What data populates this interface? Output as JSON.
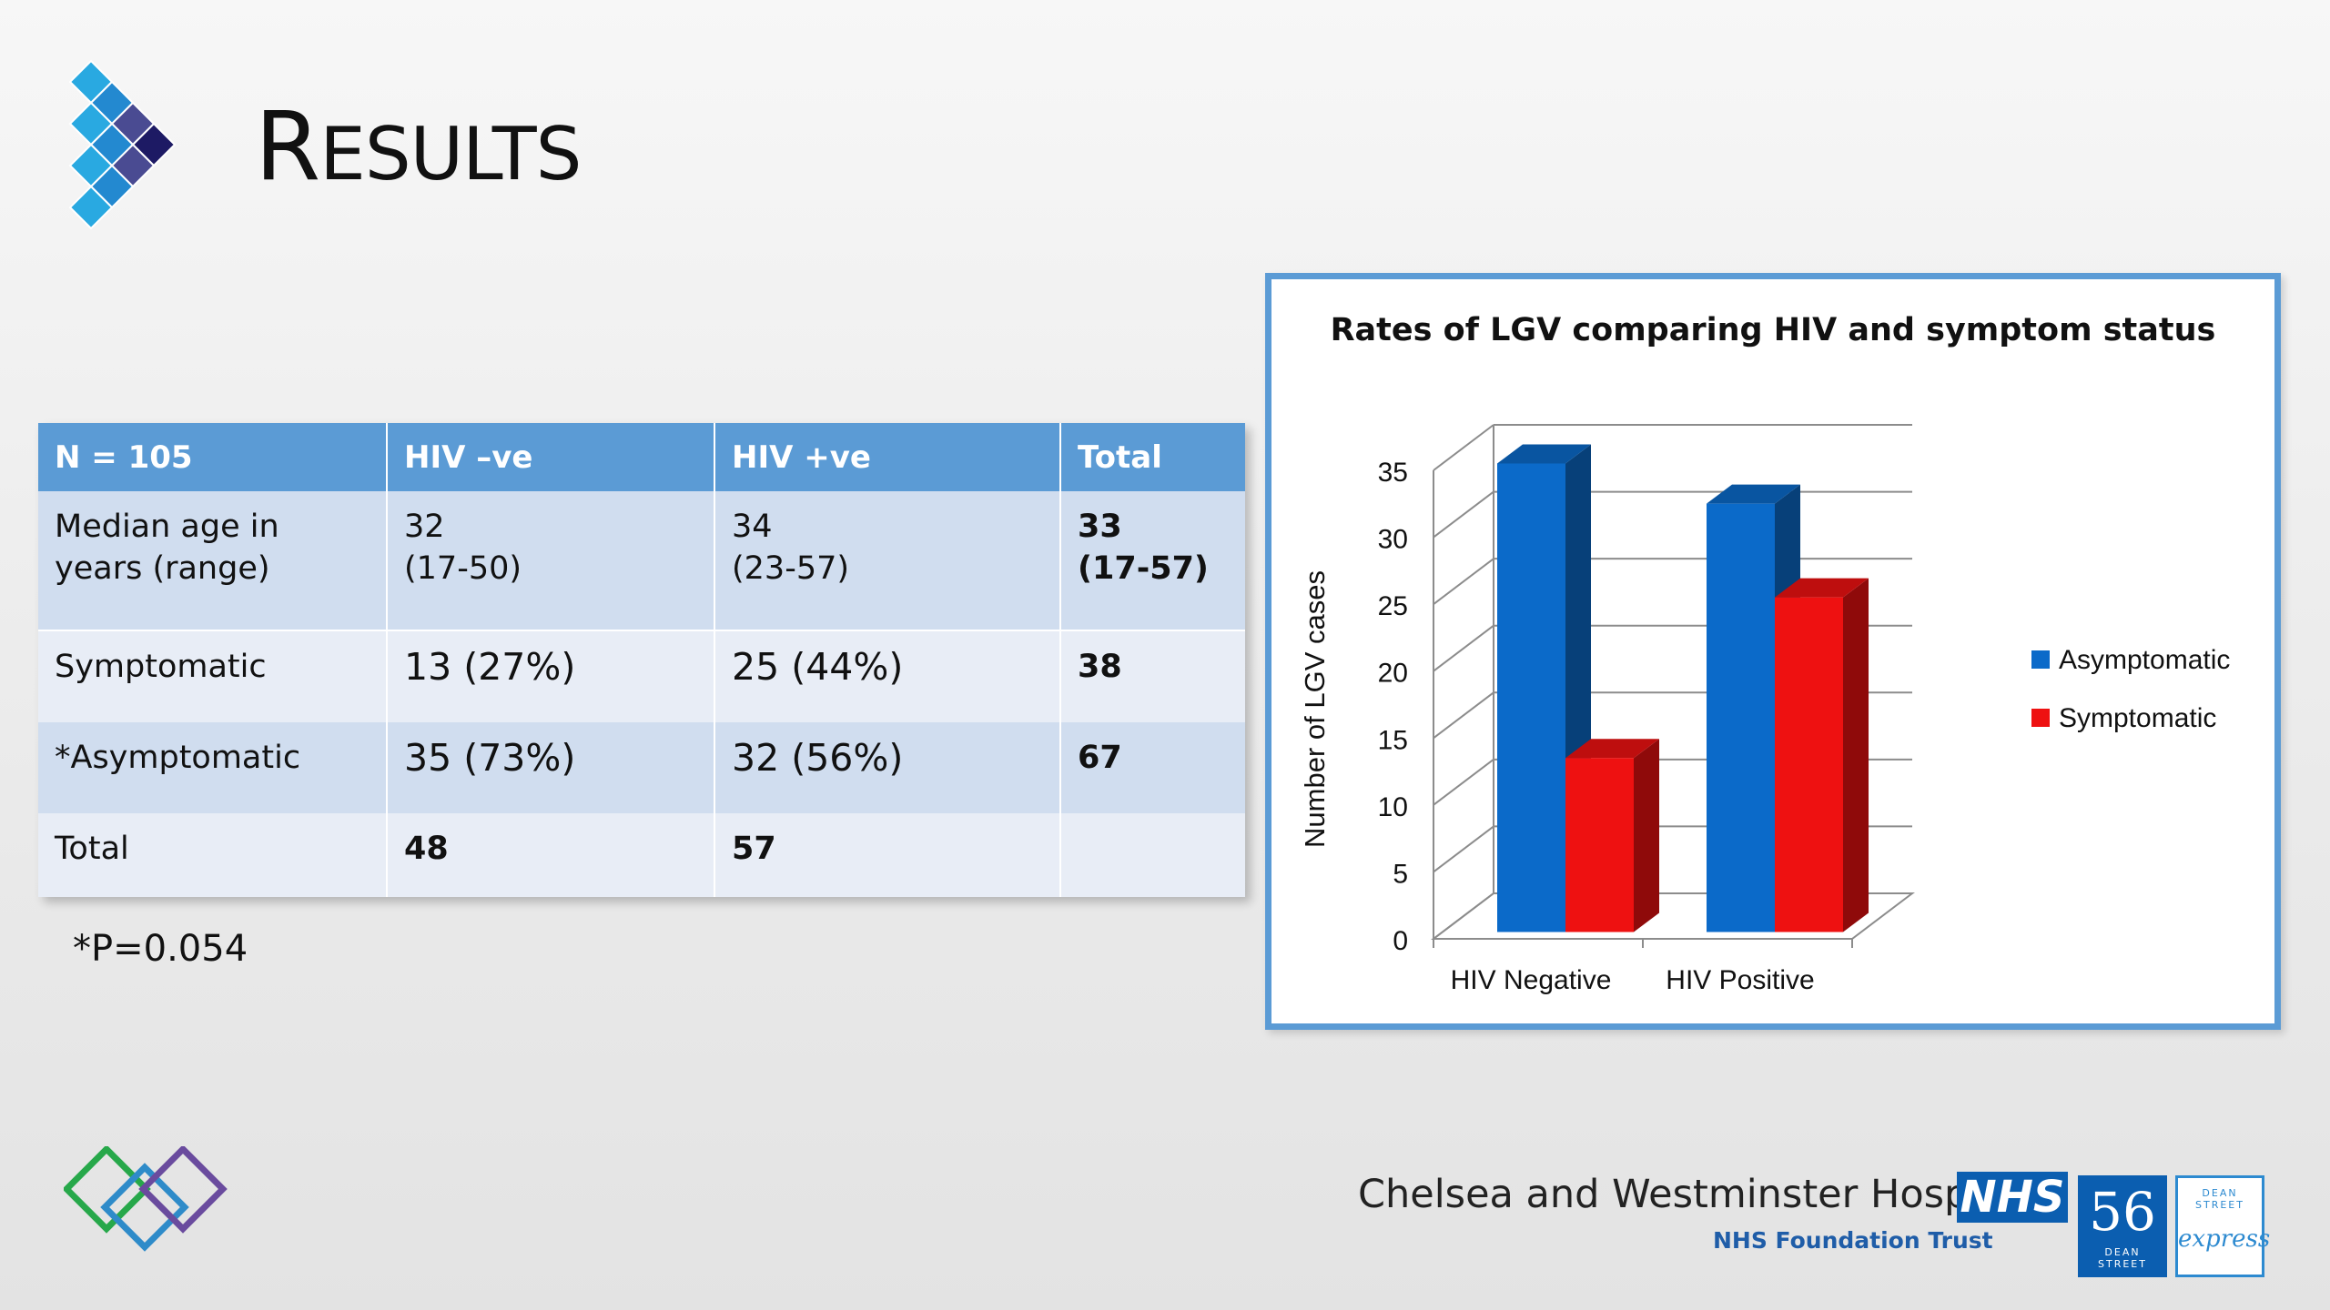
{
  "slide": {
    "title": "Results"
  },
  "table": {
    "headers": [
      "N = 105",
      "HIV –ve",
      "HIV +ve",
      "Total"
    ],
    "rows": [
      {
        "label": "Median age in years (range)",
        "hiv_neg": "32",
        "hiv_neg_range": "(17-50)",
        "hiv_pos": "34",
        "hiv_pos_range": "(23-57)",
        "total": "33",
        "total_range": "(17-57)"
      },
      {
        "label": "Symptomatic",
        "hiv_neg": "13 (27%)",
        "hiv_pos": "25 (44%)",
        "total": "38"
      },
      {
        "label": "*Asymptomatic",
        "hiv_neg": "35 (73%)",
        "hiv_pos": "32 (56%)",
        "total": "67"
      },
      {
        "label": "Total",
        "hiv_neg": "48",
        "hiv_pos": "57",
        "total": ""
      }
    ]
  },
  "p_value_note": "*P=0.054",
  "chart_data": {
    "type": "bar",
    "title": "Rates of LGV comparing HIV and symptom status",
    "xlabel": "",
    "ylabel": "Number of LGV cases",
    "categories": [
      "HIV Negative",
      "HIV Positive"
    ],
    "series": [
      {
        "name": "Asymptomatic",
        "values": [
          35,
          32
        ],
        "color": "#0b6ac9"
      },
      {
        "name": "Symptomatic",
        "values": [
          13,
          25
        ],
        "color": "#ee1111"
      }
    ],
    "ylim": [
      0,
      35
    ],
    "yticks": [
      0,
      5,
      10,
      15,
      20,
      25,
      30,
      35
    ],
    "grid": true,
    "legend_position": "right",
    "style": "3d-clustered-column"
  },
  "footer": {
    "hospital_name": "Chelsea and Westminster Hospital",
    "hospital_subtitle": "NHS Foundation Trust",
    "nhs_logo_text": "NHS",
    "dean_street_56_text": "56",
    "dean_street_text": "DEAN STREET",
    "express_text": "express",
    "colors": {
      "nhs_blue": "#0b5eb0",
      "accent_blue": "#5b9bd5"
    }
  }
}
